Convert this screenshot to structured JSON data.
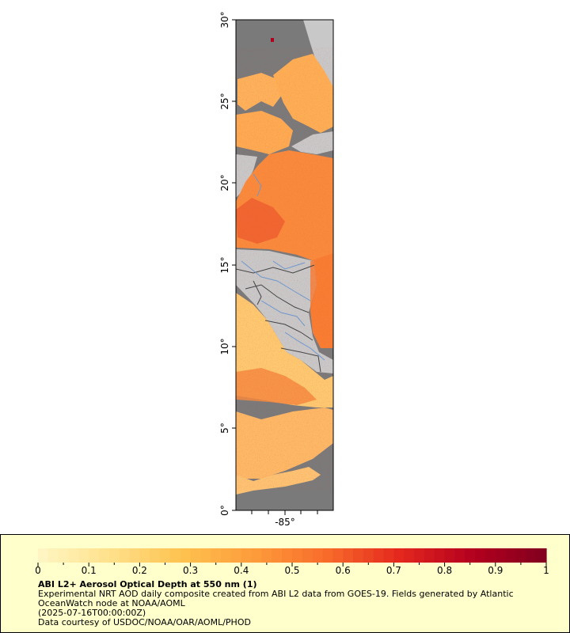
{
  "map": {
    "lat_ticks": [
      "0°",
      "5°",
      "10°",
      "15°",
      "20°",
      "25°",
      "30°"
    ],
    "lon_ticks": [
      "-85°"
    ],
    "colors": {
      "land": "#c8c8c8",
      "no_data": "#7a7a7a",
      "rivers": "#6f97cc",
      "borders": "#444444"
    }
  },
  "legend": {
    "ticks": [
      "0",
      "0.1",
      "0.2",
      "0.3",
      "0.4",
      "0.5",
      "0.6",
      "0.7",
      "0.8",
      "0.9",
      "1"
    ],
    "range": [
      0,
      1
    ],
    "colormap": [
      "#fff7c6",
      "#ffe08a",
      "#fec24f",
      "#fd9a3a",
      "#f86a2a",
      "#e3261e",
      "#b3001e",
      "#80001e"
    ]
  },
  "caption": {
    "title": "ABI L2+ Aerosol Optical Depth at 550 nm (1)",
    "line1": "Experimental NRT AOD daily composite created from ABI L2 data from GOES-19. Fields generated by Atlantic",
    "line2": "OceanWatch node at NOAA/AOML",
    "line3": "(2025-07-16T00:00:00Z)",
    "line4": "Data courtesy of USDOC/NOAA/OAR/AOML/PHOD"
  }
}
